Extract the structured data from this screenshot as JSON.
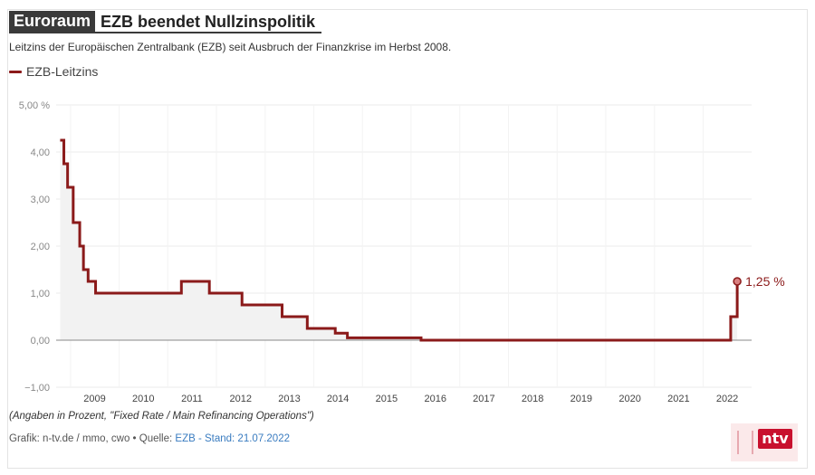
{
  "header": {
    "tag": "Euroraum",
    "title": "EZB beendet Nullzinspolitik",
    "subtitle": "Leitzins der Europäischen Zentralbank (EZB) seit Ausbruch der Finanzkrise im Herbst 2008."
  },
  "legend": {
    "label": "EZB-Leitzins",
    "color": "#8b1a1a"
  },
  "footer": {
    "note": "(Angaben in Prozent, \"Fixed Rate / Main Refinancing Operations\")",
    "source_prefix": "Grafik: n-tv.de / mmo, cwo • Quelle: ",
    "source_link": "EZB - Stand: 21.07.2022"
  },
  "logo": {
    "text": "ntv"
  },
  "chart_data": {
    "type": "line",
    "step": true,
    "series": [
      {
        "name": "EZB-Leitzins",
        "color": "#8b1a1a",
        "points": [
          [
            "2008-10-15",
            4.25
          ],
          [
            "2008-11-12",
            3.75
          ],
          [
            "2008-12-10",
            3.25
          ],
          [
            "2009-01-21",
            2.5
          ],
          [
            "2009-03-11",
            2.0
          ],
          [
            "2009-04-08",
            1.5
          ],
          [
            "2009-05-13",
            1.25
          ],
          [
            "2009-07-08",
            1.0
          ],
          [
            "2011-04-13",
            1.25
          ],
          [
            "2011-11-09",
            1.0
          ],
          [
            "2012-07-11",
            0.75
          ],
          [
            "2013-05-08",
            0.5
          ],
          [
            "2013-11-13",
            0.25
          ],
          [
            "2014-06-11",
            0.15
          ],
          [
            "2014-09-10",
            0.05
          ],
          [
            "2016-03-16",
            0.0
          ],
          [
            "2022-07-27",
            0.5
          ],
          [
            "2022-09-14",
            1.25
          ]
        ]
      }
    ],
    "end_label": "1,25 %",
    "y_ticks": [
      "5,00 %",
      "4,00",
      "3,00",
      "2,00",
      "1,00",
      "0,00",
      "−1,00"
    ],
    "y_tick_values": [
      5,
      4,
      3,
      2,
      1,
      0,
      -1
    ],
    "ylim": [
      -1,
      5
    ],
    "x_ticks": [
      "2009",
      "2010",
      "2011",
      "2012",
      "2013",
      "2014",
      "2015",
      "2016",
      "2017",
      "2018",
      "2019",
      "2020",
      "2021",
      "2022"
    ],
    "xlim": [
      "2008-09-15",
      "2022-12-31"
    ],
    "grid": true,
    "area_fill": true,
    "legend_position": "top-left",
    "title": "EZB beendet Nullzinspolitik",
    "xlabel": "",
    "ylabel": ""
  }
}
